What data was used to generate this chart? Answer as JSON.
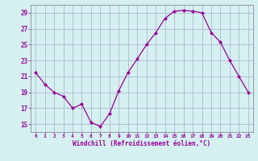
{
  "x": [
    0,
    1,
    2,
    3,
    4,
    5,
    6,
    7,
    8,
    9,
    10,
    11,
    12,
    13,
    14,
    15,
    16,
    17,
    18,
    19,
    20,
    21,
    22,
    23
  ],
  "y": [
    21.5,
    20.0,
    19.0,
    18.5,
    17.0,
    17.5,
    15.2,
    14.7,
    16.3,
    19.2,
    21.5,
    23.2,
    25.0,
    26.5,
    28.3,
    29.2,
    29.3,
    29.2,
    29.0,
    26.5,
    25.3,
    23.0,
    21.0,
    19.0
  ],
  "line_color": "#990099",
  "marker": "D",
  "marker_size": 2.0,
  "bg_color": "#d4f0f0",
  "grid_color": "#aaaacc",
  "xlabel": "Windchill (Refroidissement éolien,°C)",
  "xlabel_color": "#990099",
  "tick_color": "#990099",
  "ylim": [
    14,
    30
  ],
  "yticks": [
    15,
    17,
    19,
    21,
    23,
    25,
    27,
    29
  ],
  "xlim": [
    -0.5,
    23.5
  ],
  "xticks": [
    0,
    1,
    2,
    3,
    4,
    5,
    6,
    7,
    8,
    9,
    10,
    11,
    12,
    13,
    14,
    15,
    16,
    17,
    18,
    19,
    20,
    21,
    22,
    23
  ]
}
